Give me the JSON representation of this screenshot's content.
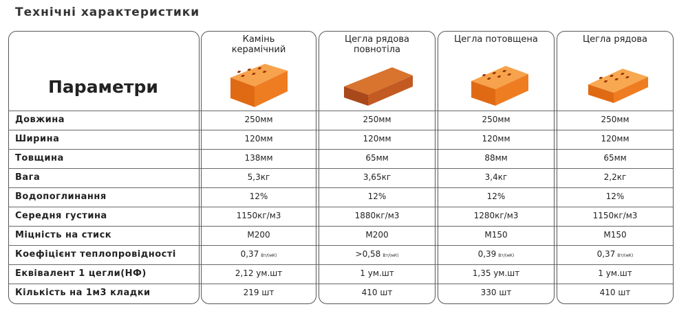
{
  "title": "Технічні характеристики",
  "table": {
    "corner": "Параметри",
    "columns": [
      "Камінь керамічний",
      "Цегла рядова повнотіла",
      "Цегла потовщена",
      "Цегла рядова"
    ],
    "rows": [
      {
        "label": "Довжина",
        "cells": [
          "250мм",
          "250мм",
          "250мм",
          "250мм"
        ]
      },
      {
        "label": "Ширина",
        "cells": [
          "120мм",
          "120мм",
          "120мм",
          "120мм"
        ]
      },
      {
        "label": "Товщина",
        "cells": [
          "138мм",
          "65мм",
          "88мм",
          "65мм"
        ]
      },
      {
        "label": "Вага",
        "cells": [
          "5,3кг",
          "3,65кг",
          "3,4кг",
          "2,2кг"
        ]
      },
      {
        "label": "Водопоглинання",
        "cells": [
          "12%",
          "12%",
          "12%",
          "12%"
        ]
      },
      {
        "label": "Середня густина",
        "cells": [
          "1150кг/м3",
          "1880кг/м3",
          "1280кг/м3",
          "1150кг/м3"
        ]
      },
      {
        "label": "Міцність на стиск",
        "cells": [
          "M200",
          "M200",
          "M150",
          "M150"
        ]
      },
      {
        "label": "Коефіцієнт теплопровідності",
        "cells": [
          {
            "text": "0,37",
            "unit": "Вт/(мК)"
          },
          {
            "text": ">0,58",
            "unit": "Вт/(мК)"
          },
          {
            "text": "0,39",
            "unit": "Вт/(мК)"
          },
          {
            "text": "0,37",
            "unit": "Вт/(мК)"
          }
        ]
      },
      {
        "label": "Еквівалент 1 цегли(НФ)",
        "cells": [
          "2,12 ум.шт",
          "1 ум.шт",
          "1,35 ум.шт",
          "1 ум.шт"
        ]
      },
      {
        "label": "Кількість на 1м3 кладки",
        "cells": [
          "219 шт",
          "410 шт",
          "330 шт",
          "410 шт"
        ]
      }
    ]
  }
}
